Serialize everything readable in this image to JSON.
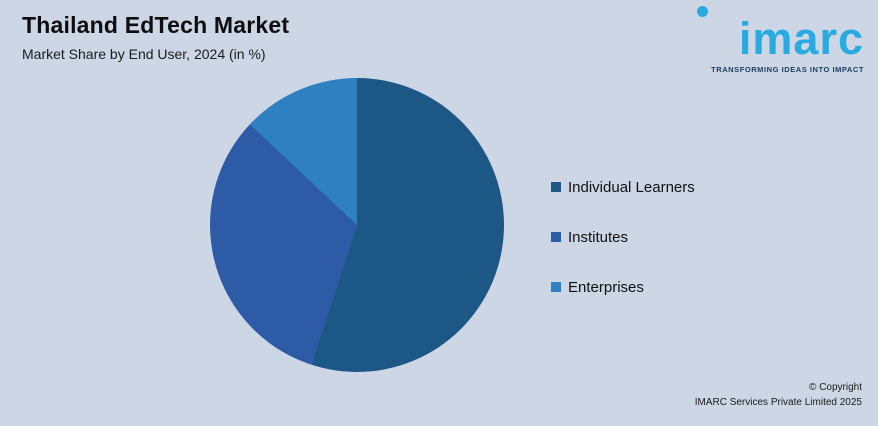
{
  "header": {
    "title": "Thailand EdTech Market",
    "subtitle": "Market Share by End User, 2024 (in %)"
  },
  "logo": {
    "brand": "imarc",
    "tagline": "TRANSFORMING IDEAS INTO IMPACT",
    "brand_color": "#29aae1",
    "tagline_color": "#1c3e63"
  },
  "chart_data": {
    "type": "pie",
    "title": "Thailand EdTech Market",
    "subtitle": "Market Share by End User, 2024 (in %)",
    "categories": [
      "Individual Learners",
      "Institutes",
      "Enterprises"
    ],
    "values": [
      55,
      32,
      13
    ],
    "unit": "%",
    "colors": [
      "#1c5786",
      "#2d5ba5",
      "#2e80c0"
    ],
    "legend_position": "right",
    "start_angle_deg": 0,
    "direction": "clockwise",
    "data_labels_visible": false
  },
  "footer": {
    "copyright_line1": "© Copyright",
    "copyright_line2": "IMARC Services Private Limited 2025"
  },
  "colors": {
    "background": "#cdd6e4"
  }
}
